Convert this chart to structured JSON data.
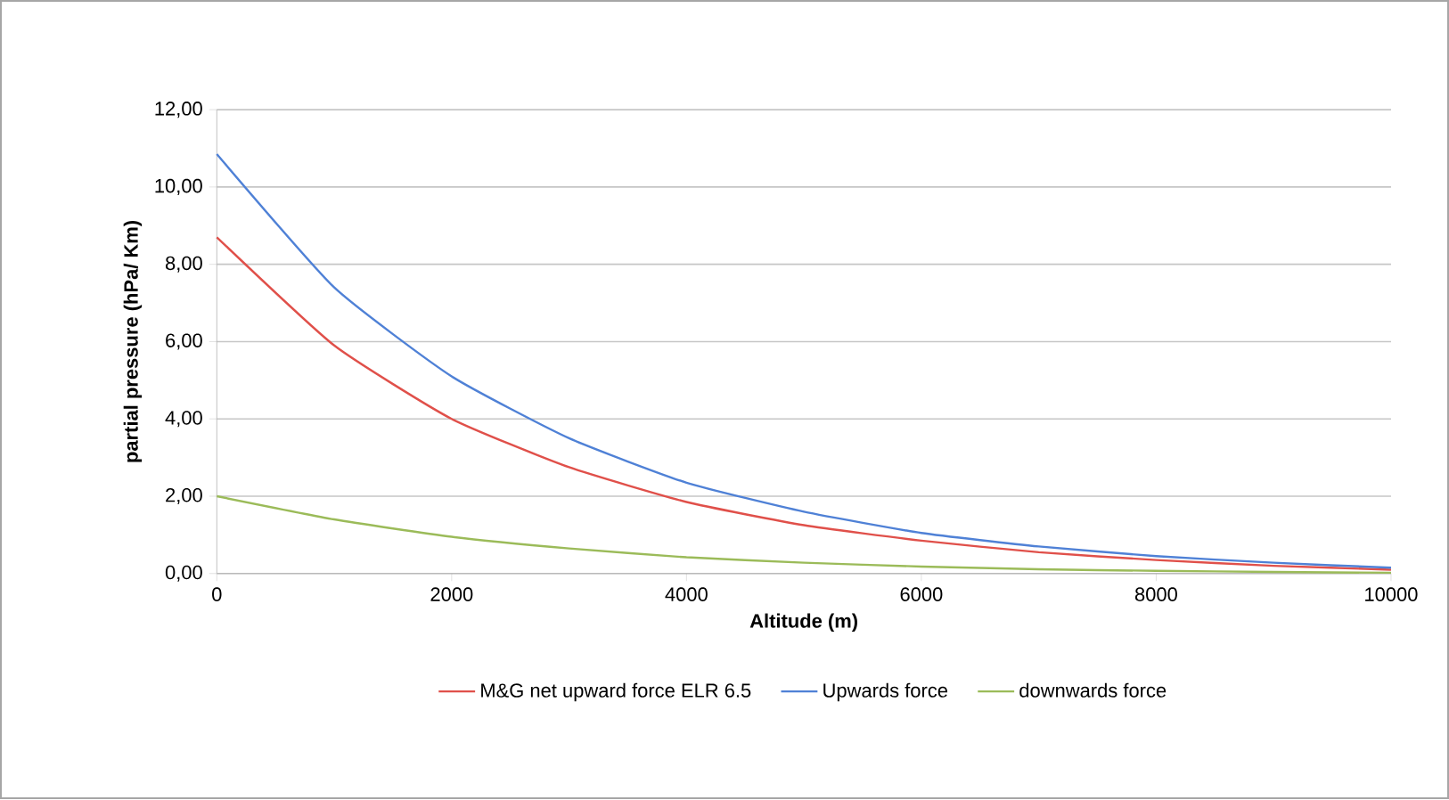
{
  "chart_data": {
    "type": "line",
    "xlabel": "Altitude (m)",
    "ylabel": "partial pressure (hPa/ Km)",
    "x": [
      0,
      1000,
      2000,
      3000,
      4000,
      5000,
      6000,
      7000,
      8000,
      9000,
      10000
    ],
    "series": [
      {
        "name": "M&G net upward force ELR 6.5",
        "color": "#e0504a",
        "values": [
          8.7,
          5.9,
          4.0,
          2.75,
          1.85,
          1.25,
          0.85,
          0.55,
          0.35,
          0.2,
          0.1
        ]
      },
      {
        "name": "Upwards force",
        "color": "#4f81d6",
        "values": [
          10.85,
          7.4,
          5.1,
          3.5,
          2.35,
          1.6,
          1.05,
          0.7,
          0.45,
          0.28,
          0.15
        ]
      },
      {
        "name": "downwards force",
        "color": "#9bbb59",
        "values": [
          2.0,
          1.4,
          0.95,
          0.65,
          0.42,
          0.28,
          0.18,
          0.11,
          0.07,
          0.04,
          0.02
        ]
      }
    ],
    "xlim": [
      0,
      10000
    ],
    "xticks": [
      0,
      2000,
      4000,
      6000,
      8000,
      10000
    ],
    "ylim": [
      0,
      12
    ],
    "yticks": [
      {
        "value": 0,
        "label": "0,00"
      },
      {
        "value": 2,
        "label": "2,00"
      },
      {
        "value": 4,
        "label": "4,00"
      },
      {
        "value": 6,
        "label": "6,00"
      },
      {
        "value": 8,
        "label": "8,00"
      },
      {
        "value": 10,
        "label": "10,00"
      },
      {
        "value": 12,
        "label": "12,00"
      }
    ],
    "grid": "y",
    "legend": "bottom",
    "marker": "none",
    "line_style": "solid"
  }
}
